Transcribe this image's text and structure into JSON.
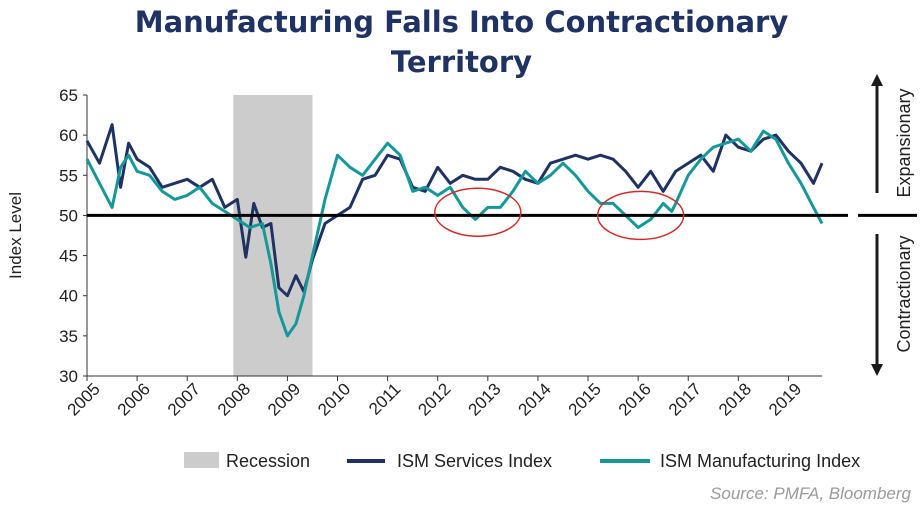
{
  "title_line1": "Manufacturing Falls Into Contractionary",
  "title_line2": "Territory",
  "source": "Source:  PMFA, Bloomberg",
  "colors": {
    "services": "#1f3264",
    "manufacturing": "#14989a",
    "recession": "#cccccc",
    "title": "#1f3264",
    "highlight": "#d22b2b"
  },
  "chart_data": {
    "type": "line",
    "title": "Manufacturing Falls Into Contractionary Territory",
    "ylabel": "Index Level",
    "xlabel": "",
    "ylim": [
      30,
      65
    ],
    "yticks": [
      30,
      35,
      40,
      45,
      50,
      55,
      60,
      65
    ],
    "xlim": [
      2005,
      2019.67
    ],
    "xticks": [
      "2005",
      "2006",
      "2007",
      "2008",
      "2009",
      "2010",
      "2011",
      "2012",
      "2013",
      "2014",
      "2015",
      "2016",
      "2017",
      "2018",
      "2019"
    ],
    "grid": false,
    "legend_position": "bottom",
    "legend": [
      "Recession",
      "ISM Services Index",
      "ISM Manufacturing Index"
    ],
    "recession": [
      2007.92,
      2009.5
    ],
    "reference_line": 50,
    "right_labels": {
      "upper": "Expansionary",
      "lower": "Contractionary"
    },
    "annotations": [
      {
        "type": "ellipse",
        "x": 2012.8,
        "y": 50.4
      },
      {
        "type": "ellipse",
        "x": 2016.05,
        "y": 50.0
      }
    ],
    "series": [
      {
        "name": "ISM Services Index",
        "x": [
          2005.0,
          2005.25,
          2005.5,
          2005.67,
          2005.83,
          2006.0,
          2006.25,
          2006.5,
          2006.75,
          2007.0,
          2007.25,
          2007.5,
          2007.75,
          2008.0,
          2008.17,
          2008.33,
          2008.5,
          2008.67,
          2008.83,
          2009.0,
          2009.17,
          2009.33,
          2009.5,
          2009.75,
          2010.0,
          2010.25,
          2010.5,
          2010.75,
          2011.0,
          2011.25,
          2011.5,
          2011.75,
          2012.0,
          2012.25,
          2012.5,
          2012.75,
          2013.0,
          2013.25,
          2013.5,
          2013.75,
          2014.0,
          2014.25,
          2014.5,
          2014.75,
          2015.0,
          2015.25,
          2015.5,
          2015.75,
          2016.0,
          2016.25,
          2016.5,
          2016.75,
          2017.0,
          2017.25,
          2017.5,
          2017.75,
          2018.0,
          2018.25,
          2018.5,
          2018.75,
          2019.0,
          2019.25,
          2019.5,
          2019.67
        ],
        "values": [
          59.3,
          56.5,
          61.3,
          53.5,
          59.0,
          57.0,
          56.0,
          53.5,
          54.0,
          54.5,
          53.5,
          54.5,
          51.0,
          52.0,
          44.8,
          51.5,
          48.5,
          49.0,
          41.0,
          40.0,
          42.5,
          40.5,
          44.5,
          49.0,
          50.0,
          51.0,
          54.5,
          55.0,
          57.5,
          57.0,
          53.5,
          53.0,
          56.0,
          54.0,
          55.0,
          54.5,
          54.5,
          56.0,
          55.5,
          54.5,
          54.0,
          56.5,
          57.0,
          57.5,
          57.0,
          57.5,
          57.0,
          55.5,
          53.5,
          55.5,
          53.0,
          55.5,
          56.5,
          57.5,
          55.5,
          60.0,
          58.5,
          58.0,
          59.5,
          60.0,
          58.0,
          56.5,
          54.0,
          56.5
        ]
      },
      {
        "name": "ISM Manufacturing Index",
        "x": [
          2005.0,
          2005.25,
          2005.5,
          2005.67,
          2005.83,
          2006.0,
          2006.25,
          2006.5,
          2006.75,
          2007.0,
          2007.25,
          2007.5,
          2007.75,
          2008.0,
          2008.25,
          2008.5,
          2008.67,
          2008.83,
          2009.0,
          2009.17,
          2009.33,
          2009.5,
          2009.75,
          2010.0,
          2010.25,
          2010.5,
          2010.75,
          2011.0,
          2011.25,
          2011.5,
          2011.75,
          2012.0,
          2012.25,
          2012.5,
          2012.75,
          2013.0,
          2013.25,
          2013.5,
          2013.75,
          2014.0,
          2014.25,
          2014.5,
          2014.75,
          2015.0,
          2015.25,
          2015.5,
          2015.75,
          2016.0,
          2016.25,
          2016.5,
          2016.67,
          2016.75,
          2017.0,
          2017.25,
          2017.5,
          2017.75,
          2018.0,
          2018.25,
          2018.5,
          2018.75,
          2019.0,
          2019.25,
          2019.5,
          2019.67
        ],
        "values": [
          57.0,
          54.0,
          51.0,
          56.0,
          57.5,
          55.5,
          55.0,
          53.0,
          52.0,
          52.5,
          53.5,
          51.5,
          50.5,
          49.5,
          48.5,
          49.0,
          44.0,
          38.0,
          35.0,
          36.5,
          40.0,
          45.0,
          52.0,
          57.5,
          56.0,
          55.0,
          57.0,
          59.0,
          57.5,
          53.0,
          53.5,
          52.5,
          53.5,
          51.0,
          49.5,
          51.0,
          51.0,
          53.0,
          55.5,
          54.0,
          55.0,
          56.5,
          55.0,
          53.0,
          51.5,
          51.5,
          50.0,
          48.5,
          49.5,
          51.5,
          50.5,
          51.5,
          55.0,
          57.0,
          58.5,
          59.0,
          59.5,
          58.0,
          60.5,
          59.5,
          56.5,
          54.0,
          51.0,
          49.0
        ]
      }
    ]
  }
}
